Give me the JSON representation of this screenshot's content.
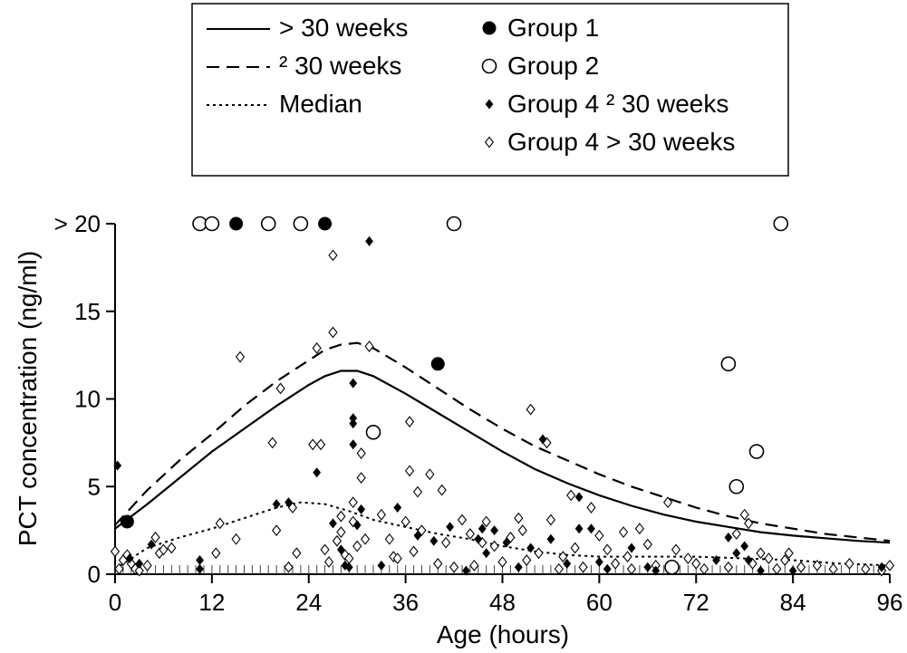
{
  "chart_data": {
    "type": "scatter",
    "xlabel": "Age (hours)",
    "ylabel": "PCT concentration (ng/ml)",
    "xlim": [
      0,
      96
    ],
    "ylim": [
      0,
      20
    ],
    "xticks": [
      0,
      12,
      24,
      36,
      48,
      60,
      72,
      84,
      96
    ],
    "yticks": [
      {
        "value": 0,
        "label": "0"
      },
      {
        "value": 5,
        "label": "5"
      },
      {
        "value": 10,
        "label": "10"
      },
      {
        "value": 15,
        "label": "15"
      },
      {
        "value": 20,
        "label": "> 20"
      }
    ],
    "legend": {
      "position": "top",
      "lines": [
        {
          "key": "gt30",
          "label": "> 30 weeks",
          "style": "solid"
        },
        {
          "key": "le30",
          "label": "² 30 weeks",
          "style": "dashed"
        },
        {
          "key": "median",
          "label": "Median",
          "style": "dotted"
        }
      ],
      "markers": [
        {
          "key": "group1",
          "label": "Group 1"
        },
        {
          "key": "group2",
          "label": "Group 2"
        },
        {
          "key": "group4_le30",
          "label": "Group 4 ² 30 weeks"
        },
        {
          "key": "group4_gt30",
          "label": "Group 4 > 30 weeks"
        }
      ]
    },
    "lines": [
      {
        "key": "gt30",
        "x": [
          0,
          4,
          8,
          12,
          16,
          20,
          24,
          26,
          28,
          30,
          32,
          36,
          40,
          44,
          48,
          52,
          56,
          60,
          64,
          68,
          72,
          76,
          80,
          84,
          88,
          92,
          96
        ],
        "y": [
          2.6,
          4.0,
          5.5,
          7.0,
          8.3,
          9.6,
          10.8,
          11.3,
          11.6,
          11.6,
          11.3,
          10.3,
          9.2,
          8.1,
          7.0,
          6.0,
          5.2,
          4.5,
          3.9,
          3.4,
          3.0,
          2.7,
          2.4,
          2.2,
          2.05,
          1.9,
          1.8
        ]
      },
      {
        "key": "le30",
        "x": [
          0,
          4,
          8,
          12,
          16,
          20,
          24,
          26,
          28,
          30,
          32,
          36,
          40,
          44,
          48,
          52,
          56,
          60,
          64,
          68,
          72,
          76,
          80,
          84,
          88,
          92,
          96
        ],
        "y": [
          2.8,
          4.8,
          6.5,
          8.0,
          9.6,
          11.0,
          12.2,
          12.8,
          13.1,
          13.2,
          12.9,
          11.8,
          10.6,
          9.4,
          8.3,
          7.3,
          6.5,
          5.7,
          5.0,
          4.4,
          3.8,
          3.3,
          2.9,
          2.6,
          2.3,
          2.1,
          1.9
        ]
      },
      {
        "key": "median",
        "x": [
          0,
          4,
          8,
          12,
          16,
          20,
          23,
          26,
          29,
          32,
          36,
          40,
          44,
          48,
          52,
          56,
          60,
          66,
          72,
          78,
          84,
          90,
          96
        ],
        "y": [
          0.3,
          1.5,
          2.1,
          2.6,
          3.2,
          3.8,
          4.1,
          4.0,
          3.6,
          3.1,
          2.7,
          2.3,
          2.0,
          1.6,
          1.3,
          1.1,
          1.0,
          1.0,
          1.0,
          0.9,
          0.8,
          0.6,
          0.5
        ]
      }
    ],
    "series": [
      {
        "key": "group1",
        "points": [
          [
            1.5,
            3.0
          ],
          [
            15,
            20
          ],
          [
            26,
            20
          ],
          [
            40,
            12
          ]
        ]
      },
      {
        "key": "group2",
        "points": [
          [
            10.5,
            20
          ],
          [
            12,
            20
          ],
          [
            19,
            20
          ],
          [
            23,
            20
          ],
          [
            42,
            20
          ],
          [
            32,
            8.1
          ],
          [
            76,
            12
          ],
          [
            77,
            5
          ],
          [
            79.5,
            7
          ],
          [
            82.5,
            20
          ],
          [
            69,
            0.4
          ]
        ]
      },
      {
        "key": "group4_le30",
        "points": [
          [
            0.3,
            6.2
          ],
          [
            1.8,
            0.9
          ],
          [
            3,
            0.6
          ],
          [
            4.5,
            1.7
          ],
          [
            10.5,
            0.3
          ],
          [
            10.5,
            0.8
          ],
          [
            20,
            4
          ],
          [
            21.5,
            4.1
          ],
          [
            25,
            5.8
          ],
          [
            27,
            2.9
          ],
          [
            28,
            1.4
          ],
          [
            28.5,
            0.5
          ],
          [
            29,
            0.4
          ],
          [
            29.5,
            7.4
          ],
          [
            29.5,
            8.6
          ],
          [
            29.5,
            8.9
          ],
          [
            29.5,
            10.9
          ],
          [
            30.5,
            3.7
          ],
          [
            30,
            2.8
          ],
          [
            31.5,
            19
          ],
          [
            33,
            0.5
          ],
          [
            35,
            3.8
          ],
          [
            37.5,
            2.2
          ],
          [
            39.5,
            1.9
          ],
          [
            41.5,
            2.7
          ],
          [
            43.5,
            0.2
          ],
          [
            45,
            2.0
          ],
          [
            45.5,
            2.6
          ],
          [
            46,
            1.2
          ],
          [
            47,
            2.5
          ],
          [
            48.5,
            1.8
          ],
          [
            50,
            0.4
          ],
          [
            51.5,
            1.5
          ],
          [
            53,
            7.7
          ],
          [
            54,
            2.0
          ],
          [
            56,
            0.6
          ],
          [
            57.5,
            4.4
          ],
          [
            57.5,
            2.6
          ],
          [
            59,
            2.6
          ],
          [
            60,
            0.7
          ],
          [
            61,
            0.3
          ],
          [
            64,
            1.5
          ],
          [
            66,
            0.4
          ],
          [
            67,
            0.2
          ],
          [
            74.5,
            0.8
          ],
          [
            76,
            2.1
          ],
          [
            77,
            1.2
          ],
          [
            78,
            1.6
          ],
          [
            78.5,
            0.8
          ],
          [
            80,
            0.2
          ],
          [
            84,
            0.2
          ],
          [
            95,
            0.4
          ]
        ]
      },
      {
        "key": "group4_gt30",
        "points": [
          [
            0,
            1.3
          ],
          [
            0.5,
            0.3
          ],
          [
            1,
            0.8
          ],
          [
            1.5,
            1.1
          ],
          [
            2,
            0.6
          ],
          [
            2.5,
            0.3
          ],
          [
            3,
            0.2
          ],
          [
            4,
            0.5
          ],
          [
            5,
            2.1
          ],
          [
            5.5,
            1.2
          ],
          [
            6,
            1.4
          ],
          [
            7,
            1.5
          ],
          [
            12.5,
            1.2
          ],
          [
            13,
            2.9
          ],
          [
            15,
            2.0
          ],
          [
            15.5,
            12.4
          ],
          [
            19.5,
            7.5
          ],
          [
            20,
            2.5
          ],
          [
            20.5,
            10.6
          ],
          [
            21.5,
            0.4
          ],
          [
            22,
            3.8
          ],
          [
            22.5,
            1.2
          ],
          [
            24.5,
            7.4
          ],
          [
            25,
            12.9
          ],
          [
            25.5,
            7.4
          ],
          [
            26,
            1.4
          ],
          [
            26.5,
            0.7
          ],
          [
            27,
            13.8
          ],
          [
            27,
            18.2
          ],
          [
            27.5,
            1.9
          ],
          [
            28,
            2.4
          ],
          [
            28,
            3.3
          ],
          [
            28.5,
            1.1
          ],
          [
            29,
            0.9
          ],
          [
            29.5,
            3.0
          ],
          [
            29.5,
            4.1
          ],
          [
            30,
            1.6
          ],
          [
            30.5,
            6.9
          ],
          [
            30.5,
            5.5
          ],
          [
            31,
            2.0
          ],
          [
            31.5,
            13
          ],
          [
            33,
            3.4
          ],
          [
            34,
            2.0
          ],
          [
            34.5,
            1.0
          ],
          [
            35,
            0.9
          ],
          [
            36,
            3.0
          ],
          [
            36.5,
            5.9
          ],
          [
            36.5,
            8.7
          ],
          [
            37,
            1.3
          ],
          [
            37.5,
            4.7
          ],
          [
            38,
            2.5
          ],
          [
            39,
            5.7
          ],
          [
            40,
            0.6
          ],
          [
            40.5,
            4.8
          ],
          [
            41,
            1.8
          ],
          [
            42,
            0.4
          ],
          [
            43,
            3.1
          ],
          [
            44,
            2.3
          ],
          [
            44.5,
            0.5
          ],
          [
            45.5,
            1.8
          ],
          [
            46,
            3.0
          ],
          [
            47,
            1.6
          ],
          [
            48,
            0.7
          ],
          [
            49,
            2.1
          ],
          [
            50,
            3.2
          ],
          [
            50.5,
            2.5
          ],
          [
            51,
            0.8
          ],
          [
            51.5,
            9.4
          ],
          [
            52.5,
            1.2
          ],
          [
            53.5,
            7.5
          ],
          [
            54,
            3.1
          ],
          [
            55,
            0.3
          ],
          [
            55.5,
            1.0
          ],
          [
            56.5,
            4.5
          ],
          [
            57,
            1.5
          ],
          [
            58,
            0.4
          ],
          [
            59,
            3.8
          ],
          [
            60,
            2.2
          ],
          [
            61,
            1.4
          ],
          [
            62,
            0.6
          ],
          [
            63,
            2.4
          ],
          [
            63.5,
            1.0
          ],
          [
            64,
            0.3
          ],
          [
            65,
            2.6
          ],
          [
            66,
            1.7
          ],
          [
            67,
            0.5
          ],
          [
            68.5,
            4.1
          ],
          [
            69.5,
            1.4
          ],
          [
            71,
            0.9
          ],
          [
            72,
            0.6
          ],
          [
            73,
            0.3
          ],
          [
            76,
            0.4
          ],
          [
            77,
            2.3
          ],
          [
            78,
            3.4
          ],
          [
            78.5,
            2.9
          ],
          [
            79,
            0.6
          ],
          [
            80,
            1.2
          ],
          [
            81,
            0.9
          ],
          [
            82,
            0.3
          ],
          [
            83,
            0.8
          ],
          [
            83.5,
            1.2
          ],
          [
            85,
            0.4
          ],
          [
            87,
            0.5
          ],
          [
            89,
            0.3
          ],
          [
            91,
            0.6
          ],
          [
            93,
            0.3
          ],
          [
            95,
            0.2
          ],
          [
            96,
            0.5
          ]
        ]
      }
    ],
    "x_rug_positions": [
      0,
      1,
      2,
      3,
      4,
      5,
      6,
      7,
      8,
      9,
      10,
      11,
      12,
      13,
      14,
      15,
      16,
      17,
      18,
      19,
      20,
      21,
      22,
      23,
      24,
      25,
      26,
      27,
      28,
      29,
      30,
      31,
      32,
      33,
      34,
      35,
      36,
      37,
      38,
      39,
      40,
      41,
      42,
      43,
      44,
      45,
      46,
      47,
      48,
      49,
      50,
      51,
      52,
      53,
      54,
      55,
      56,
      57,
      58,
      59,
      60,
      61,
      62,
      63,
      64,
      65,
      66,
      67,
      68,
      69,
      70,
      71,
      72,
      73,
      74,
      75,
      76,
      77,
      78,
      79,
      80,
      81,
      82,
      83,
      84,
      85,
      86,
      87,
      88,
      89,
      90,
      91,
      92,
      93,
      94,
      95
    ],
    "grid": false
  }
}
